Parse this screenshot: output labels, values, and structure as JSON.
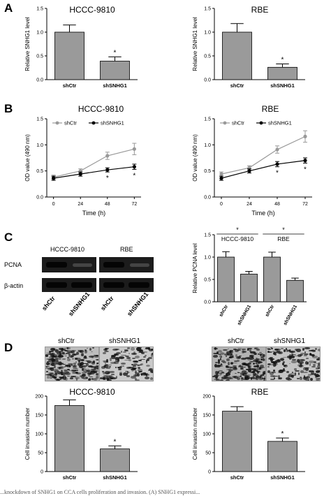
{
  "panels": {
    "A": "A",
    "B": "B",
    "C": "C",
    "D": "D"
  },
  "chart_data": [
    {
      "id": "A-left",
      "type": "bar",
      "title": "HCCC-9810",
      "ylabel": "Relative SNHG1 level",
      "xlabel": "",
      "categories": [
        "shCtr",
        "shSNHG1"
      ],
      "values": [
        1.0,
        0.39
      ],
      "errors": [
        0.15,
        0.09
      ],
      "ylim": [
        0,
        1.5
      ],
      "yticks": [
        "0.0",
        "0.5",
        "1.0",
        "1.5"
      ],
      "yticks_num": [
        0,
        0.5,
        1.0,
        1.5
      ],
      "significance": [
        "",
        "*"
      ]
    },
    {
      "id": "A-right",
      "type": "bar",
      "title": "RBE",
      "ylabel": "Relative SNHG1 level",
      "xlabel": "",
      "categories": [
        "shCtr",
        "shSNHG1"
      ],
      "values": [
        1.0,
        0.26
      ],
      "errors": [
        0.18,
        0.07
      ],
      "ylim": [
        0,
        1.5
      ],
      "yticks": [
        "0.0",
        "0.5",
        "1.0",
        "1.5"
      ],
      "yticks_num": [
        0,
        0.5,
        1.0,
        1.5
      ],
      "significance": [
        "",
        "*"
      ]
    },
    {
      "id": "B-left",
      "type": "line",
      "title": "HCCC-9810",
      "ylabel": "OD value (490 nm)",
      "xlabel": "Time (h)",
      "x": [
        0,
        24,
        48,
        72
      ],
      "xticks": [
        "0",
        "24",
        "48",
        "72"
      ],
      "ylim": [
        0,
        1.5
      ],
      "yticks": [
        "0.0",
        "0.5",
        "1.0",
        "1.5"
      ],
      "yticks_num": [
        0,
        0.5,
        1.0,
        1.5
      ],
      "legend_position": "top-left",
      "series": [
        {
          "name": "shCtr",
          "values": [
            0.38,
            0.5,
            0.79,
            0.92
          ],
          "errors": [
            0.04,
            0.04,
            0.07,
            0.11
          ],
          "color": "#999999"
        },
        {
          "name": "shSNHG1",
          "values": [
            0.36,
            0.44,
            0.52,
            0.58
          ],
          "errors": [
            0.04,
            0.04,
            0.04,
            0.05
          ],
          "color": "#000000"
        }
      ],
      "significance": [
        "",
        "",
        "*",
        "*"
      ]
    },
    {
      "id": "B-right",
      "type": "line",
      "title": "RBE",
      "ylabel": "OD value (490 nm)",
      "xlabel": "Time (h)",
      "x": [
        0,
        24,
        48,
        72
      ],
      "xticks": [
        "0",
        "24",
        "48",
        "72"
      ],
      "ylim": [
        0,
        1.5
      ],
      "yticks": [
        "0.0",
        "0.5",
        "1.0",
        "1.5"
      ],
      "yticks_num": [
        0,
        0.5,
        1.0,
        1.5
      ],
      "legend_position": "top-left",
      "series": [
        {
          "name": "shCtr",
          "values": [
            0.44,
            0.56,
            0.91,
            1.16
          ],
          "errors": [
            0.04,
            0.04,
            0.07,
            0.11
          ],
          "color": "#999999"
        },
        {
          "name": "shSNHG1",
          "values": [
            0.36,
            0.5,
            0.63,
            0.7
          ],
          "errors": [
            0.04,
            0.04,
            0.05,
            0.05
          ],
          "color": "#000000"
        }
      ],
      "significance": [
        "",
        "",
        "*",
        "*"
      ]
    },
    {
      "id": "C-right",
      "type": "bar",
      "title": "",
      "ylabel": "Relative PCNA level",
      "xlabel": "",
      "categories": [
        "shCtr",
        "shSNHG1",
        "shCtr",
        "shSNHG1"
      ],
      "values": [
        1.0,
        0.62,
        1.0,
        0.48
      ],
      "errors": [
        0.12,
        0.06,
        0.11,
        0.05
      ],
      "ylim": [
        0,
        1.5
      ],
      "yticks": [
        "0.0",
        "0.5",
        "1.0",
        "1.5"
      ],
      "yticks_num": [
        0,
        0.5,
        1.0,
        1.5
      ],
      "groups": [
        "HCCC-9810",
        "RBE"
      ],
      "group_marks": [
        "*",
        "*"
      ]
    },
    {
      "id": "D-left",
      "type": "bar",
      "title": "HCCC-9810",
      "ylabel": "Cell invasion number",
      "xlabel": "",
      "categories": [
        "shCtr",
        "shSNHG1"
      ],
      "values": [
        175,
        60
      ],
      "errors": [
        15,
        8
      ],
      "ylim": [
        0,
        200
      ],
      "yticks": [
        "0",
        "50",
        "100",
        "150",
        "200"
      ],
      "yticks_num": [
        0,
        50,
        100,
        150,
        200
      ],
      "significance": [
        "",
        "*"
      ]
    },
    {
      "id": "D-right",
      "type": "bar",
      "title": "RBE",
      "ylabel": "Cell invasion number",
      "xlabel": "",
      "categories": [
        "shCtr",
        "shSNHG1"
      ],
      "values": [
        160,
        80
      ],
      "errors": [
        12,
        9
      ],
      "ylim": [
        0,
        200
      ],
      "yticks": [
        "0",
        "50",
        "100",
        "150",
        "200"
      ],
      "yticks_num": [
        0,
        50,
        100,
        150,
        200
      ],
      "significance": [
        "",
        "*"
      ]
    }
  ],
  "western_blot": {
    "cell_lines": [
      "HCCC-9810",
      "RBE"
    ],
    "rows": [
      "PCNA",
      "β-actin"
    ],
    "lanes": [
      "shCtr",
      "shSNHG1",
      "shCtr",
      "shSNHG1"
    ]
  },
  "invasion_images": {
    "left_labels": [
      "shCtr",
      "shSNHG1"
    ],
    "right_labels": [
      "shCtr",
      "shSNHG1"
    ]
  },
  "caption": {
    "text": "...knockdown of SNHG1 on CCA cells proliferation and invasion. (A) SNHG1 expressi..."
  }
}
